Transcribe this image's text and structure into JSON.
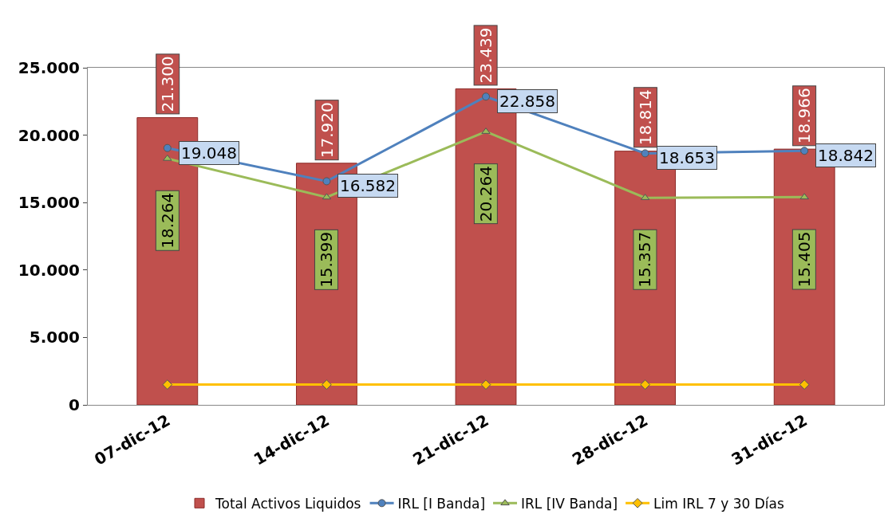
{
  "chart_data": {
    "type": "bar",
    "categories": [
      "07-dic-12",
      "14-dic-12",
      "21-dic-12",
      "28-dic-12",
      "31-dic-12"
    ],
    "series": [
      {
        "name": "Total Activos Liquidos",
        "color": "#c0504d",
        "values": [
          21300,
          17920,
          23439,
          18814,
          18966
        ],
        "value_labels": [
          "21.300",
          "17.920",
          "23.439",
          "18.814",
          "18.966"
        ]
      },
      {
        "name": "IRL [I Banda]",
        "type": "line",
        "color": "#4f81bd",
        "marker": "circle",
        "values": [
          19048,
          16582,
          22858,
          18653,
          18842
        ],
        "value_labels": [
          "19.048",
          "16.582",
          "22.858",
          "18.653",
          "18.842"
        ]
      },
      {
        "name": "IRL [IV Banda]",
        "type": "line",
        "color": "#9bbb59",
        "marker": "triangle",
        "values": [
          18264,
          15399,
          20264,
          15357,
          15405
        ],
        "value_labels": [
          "18.264",
          "15.399",
          "20.264",
          "15.357",
          "15.405"
        ]
      },
      {
        "name": "Lim IRL 7 y 30 Días",
        "type": "line",
        "color": "#ffc000",
        "marker": "diamond",
        "values": [
          1500,
          1500,
          1500,
          1500,
          1500
        ]
      }
    ],
    "ylim": [
      0,
      25000
    ],
    "yticks": [
      {
        "value": 0,
        "label": "0"
      },
      {
        "value": 5000,
        "label": "5.000"
      },
      {
        "value": 10000,
        "label": "10.000"
      },
      {
        "value": 15000,
        "label": "15.000"
      },
      {
        "value": 20000,
        "label": "20.000"
      },
      {
        "value": 25000,
        "label": "25.000"
      }
    ],
    "grid": false,
    "legend": "bottom"
  }
}
